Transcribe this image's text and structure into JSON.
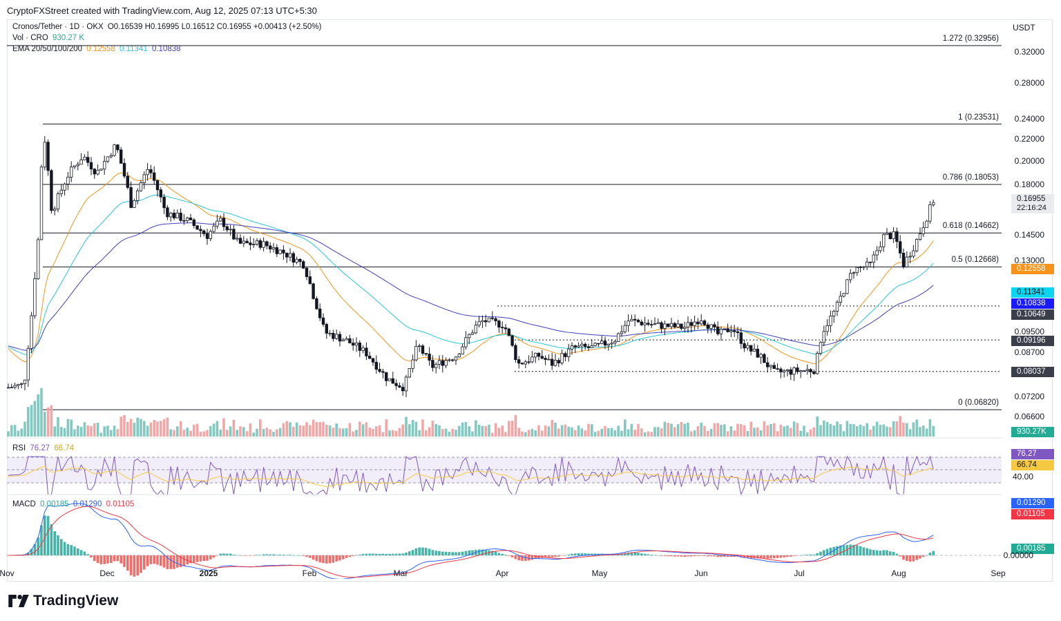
{
  "header": {
    "text": "CryptoFXStreet created with TradingView.com, Aug 12, 2025 07:13 UTC+5:30"
  },
  "legend": {
    "symbol": "Cronos/Tether · 1D · OKX",
    "ohlc": "O0.16539  H0.16995  L0.16512  C0.16955  +0.00413 (+2.50%)",
    "vol_label": "Vol · CRO",
    "vol_value": "930.27 K",
    "ema_label": "EMA 20/50/100/200",
    "ema20": "0.12558",
    "ema50": "0.11341",
    "ema100": "0.10838"
  },
  "currency": "USDT",
  "price_axis": {
    "ticks": [
      "0.32000",
      "0.28000",
      "0.24000",
      "0.22000",
      "0.20000",
      "0.18000",
      "0.14500",
      "0.13000",
      "0.09500",
      "0.08700",
      "0.07200",
      "0.06600"
    ],
    "last_price": "0.16955",
    "countdown": "22:16:24",
    "ema20_tag": "0.12558",
    "ema50_tag": "0.11341",
    "ema100_tag": "0.10838",
    "level1_tag": "0.10649",
    "level2_tag": "0.09196",
    "level3_tag": "0.08037",
    "volume_tag": "930.27K"
  },
  "fib_levels": [
    {
      "label": "1.272 (0.32956)",
      "price": 0.32956
    },
    {
      "label": "1 (0.23531)",
      "price": 0.23531
    },
    {
      "label": "0.786 (0.18053)",
      "price": 0.18053
    },
    {
      "label": "0.618 (0.14662)",
      "price": 0.14662
    },
    {
      "label": "0.5 (0.12668)",
      "price": 0.12668
    },
    {
      "label": "0 (0.06820)",
      "price": 0.0682
    }
  ],
  "rsi": {
    "label": "RSI",
    "value": "76.27",
    "ma": "66.74",
    "tag_rsi": "76.27",
    "tag_ma": "66.74",
    "tick": "40.00"
  },
  "macd": {
    "label": "MACD",
    "hist": "0.00185",
    "macd": "0.01290",
    "signal": "0.01105",
    "tag_macd": "0.01290",
    "tag_signal": "0.01105",
    "tag_hist": "0.00185",
    "tick": "0.00000"
  },
  "x_axis": [
    "Nov",
    "Dec",
    "2025",
    "Feb",
    "Mar",
    "Apr",
    "May",
    "Jun",
    "Jul",
    "Aug",
    "Sep"
  ],
  "brand": "TradingView",
  "colors": {
    "up": "#ffffff",
    "down": "#131722",
    "ema20": "#f7931a",
    "ema50": "#26c6da",
    "ema100": "#3f3fbf",
    "rsi": "#7e57c2",
    "rsi_ma": "#f5c842",
    "macd": "#2962ff",
    "signal": "#f23645",
    "vol_up": "#81c9c1",
    "vol_down": "#f4a6a6"
  },
  "chart_data": {
    "type": "candlestick",
    "title": "Cronos/Tether · 1D · OKX",
    "ylabel": "USDT",
    "close_path": [
      [
        "Nov",
        0.075
      ],
      [
        "Nov",
        0.13
      ],
      [
        "Nov",
        0.22
      ],
      [
        "Dec",
        0.195
      ],
      [
        "Dec",
        0.215
      ],
      [
        "Dec",
        0.19
      ],
      [
        "2025",
        0.15
      ],
      [
        "2025",
        0.14
      ],
      [
        "2025",
        0.135
      ],
      [
        "Feb",
        0.128
      ],
      [
        "Feb",
        0.098
      ],
      [
        "Feb",
        0.09
      ],
      [
        "Mar",
        0.078
      ],
      [
        "Mar",
        0.086
      ],
      [
        "Mar",
        0.083
      ],
      [
        "Apr",
        0.1
      ],
      [
        "Apr",
        0.08
      ],
      [
        "May",
        0.089
      ],
      [
        "May",
        0.101
      ],
      [
        "Jun",
        0.1
      ],
      [
        "Jun",
        0.09
      ],
      [
        "Jul",
        0.081
      ],
      [
        "Jul",
        0.105
      ],
      [
        "Jul",
        0.145
      ],
      [
        "Aug",
        0.128
      ],
      [
        "Aug",
        0.16955
      ]
    ]
  }
}
